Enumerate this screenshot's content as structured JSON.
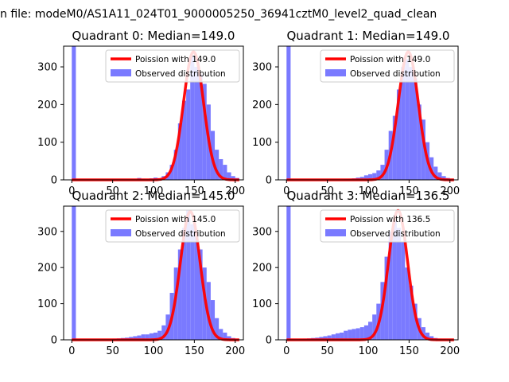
{
  "figure": {
    "suptitle": "n file: modeM0/AS1A11_024T01_9000005250_36941cztM0_level2_quad_clean"
  },
  "colors": {
    "hist": "#7a7aff",
    "fit": "#ff0000",
    "legend_border": "#cccccc"
  },
  "chart_data": [
    {
      "type": "bar",
      "title": "Quadrant 0: Median=149.0",
      "xlim": [
        -10,
        210
      ],
      "ylim": [
        0,
        355
      ],
      "xticks": [
        0,
        50,
        100,
        150,
        200
      ],
      "yticks": [
        0,
        100,
        200,
        300
      ],
      "legend": [
        "Poission with 149.0",
        "Observed distribution"
      ],
      "legend_loc": "upper right",
      "fit_mean": 149.0,
      "fit_peak": 340,
      "hist_x": [
        0,
        5,
        10,
        15,
        20,
        25,
        30,
        35,
        40,
        45,
        50,
        55,
        60,
        65,
        70,
        75,
        80,
        85,
        90,
        95,
        100,
        105,
        110,
        115,
        120,
        125,
        130,
        135,
        140,
        145,
        150,
        155,
        160,
        165,
        170,
        175,
        180,
        185,
        190,
        195,
        200
      ],
      "hist_y": [
        355,
        0,
        0,
        0,
        0,
        0,
        0,
        0,
        0,
        0,
        0,
        0,
        0,
        0,
        0,
        0,
        5,
        3,
        2,
        4,
        6,
        4,
        10,
        20,
        40,
        80,
        150,
        210,
        240,
        330,
        300,
        280,
        255,
        200,
        130,
        80,
        55,
        40,
        20,
        10,
        5
      ]
    },
    {
      "type": "bar",
      "title": "Quadrant 1: Median=149.0",
      "xlim": [
        -10,
        210
      ],
      "ylim": [
        0,
        355
      ],
      "xticks": [
        0,
        50,
        100,
        150,
        200
      ],
      "yticks": [
        0,
        100,
        200,
        300
      ],
      "legend": [
        "Poission with 149.0",
        "Observed distribution"
      ],
      "legend_loc": "upper right",
      "fit_mean": 149.0,
      "fit_peak": 340,
      "hist_x": [
        0,
        5,
        10,
        15,
        20,
        25,
        30,
        35,
        40,
        45,
        50,
        55,
        60,
        65,
        70,
        75,
        80,
        85,
        90,
        95,
        100,
        105,
        110,
        115,
        120,
        125,
        130,
        135,
        140,
        145,
        150,
        155,
        160,
        165,
        170,
        175,
        180,
        185,
        190,
        195,
        200
      ],
      "hist_y": [
        355,
        0,
        0,
        0,
        0,
        0,
        0,
        0,
        0,
        0,
        0,
        0,
        0,
        0,
        2,
        3,
        4,
        6,
        8,
        12,
        15,
        18,
        25,
        40,
        80,
        130,
        170,
        240,
        300,
        320,
        300,
        270,
        200,
        160,
        100,
        60,
        35,
        20,
        10,
        5,
        2
      ]
    },
    {
      "type": "bar",
      "title": "Quadrant 2: Median=145.0",
      "xlim": [
        -10,
        210
      ],
      "ylim": [
        0,
        370
      ],
      "xticks": [
        0,
        50,
        100,
        150,
        200
      ],
      "yticks": [
        0,
        100,
        200,
        300
      ],
      "legend": [
        "Poission with 145.0",
        "Observed distribution"
      ],
      "legend_loc": "upper right",
      "fit_mean": 145.0,
      "fit_peak": 355,
      "hist_x": [
        0,
        5,
        10,
        15,
        20,
        25,
        30,
        35,
        40,
        45,
        50,
        55,
        60,
        65,
        70,
        75,
        80,
        85,
        90,
        95,
        100,
        105,
        110,
        115,
        120,
        125,
        130,
        135,
        140,
        145,
        150,
        155,
        160,
        165,
        170,
        175,
        180,
        185,
        190,
        195,
        200
      ],
      "hist_y": [
        370,
        0,
        0,
        0,
        0,
        0,
        0,
        0,
        0,
        0,
        3,
        4,
        5,
        6,
        8,
        10,
        12,
        15,
        15,
        18,
        20,
        25,
        40,
        70,
        130,
        200,
        250,
        310,
        360,
        320,
        300,
        250,
        200,
        160,
        110,
        60,
        30,
        20,
        10,
        5,
        2
      ]
    },
    {
      "type": "bar",
      "title": "Quadrant 3: Median=136.5",
      "xlim": [
        -10,
        210
      ],
      "ylim": [
        0,
        370
      ],
      "xticks": [
        0,
        50,
        100,
        150,
        200
      ],
      "yticks": [
        0,
        100,
        200,
        300
      ],
      "legend": [
        "Poission with 136.5",
        "Observed distribution"
      ],
      "legend_loc": "upper right",
      "fit_mean": 136.5,
      "fit_peak": 358,
      "hist_x": [
        0,
        5,
        10,
        15,
        20,
        25,
        30,
        35,
        40,
        45,
        50,
        55,
        60,
        65,
        70,
        75,
        80,
        85,
        90,
        95,
        100,
        105,
        110,
        115,
        120,
        125,
        130,
        135,
        140,
        145,
        150,
        155,
        160,
        165,
        170,
        175,
        180,
        185,
        190,
        195,
        200
      ],
      "hist_y": [
        370,
        0,
        0,
        2,
        3,
        4,
        5,
        6,
        8,
        10,
        12,
        15,
        18,
        20,
        25,
        28,
        30,
        32,
        35,
        40,
        50,
        70,
        100,
        160,
        230,
        300,
        330,
        310,
        270,
        200,
        150,
        100,
        60,
        35,
        20,
        10,
        5,
        3,
        2,
        1,
        0
      ]
    }
  ]
}
